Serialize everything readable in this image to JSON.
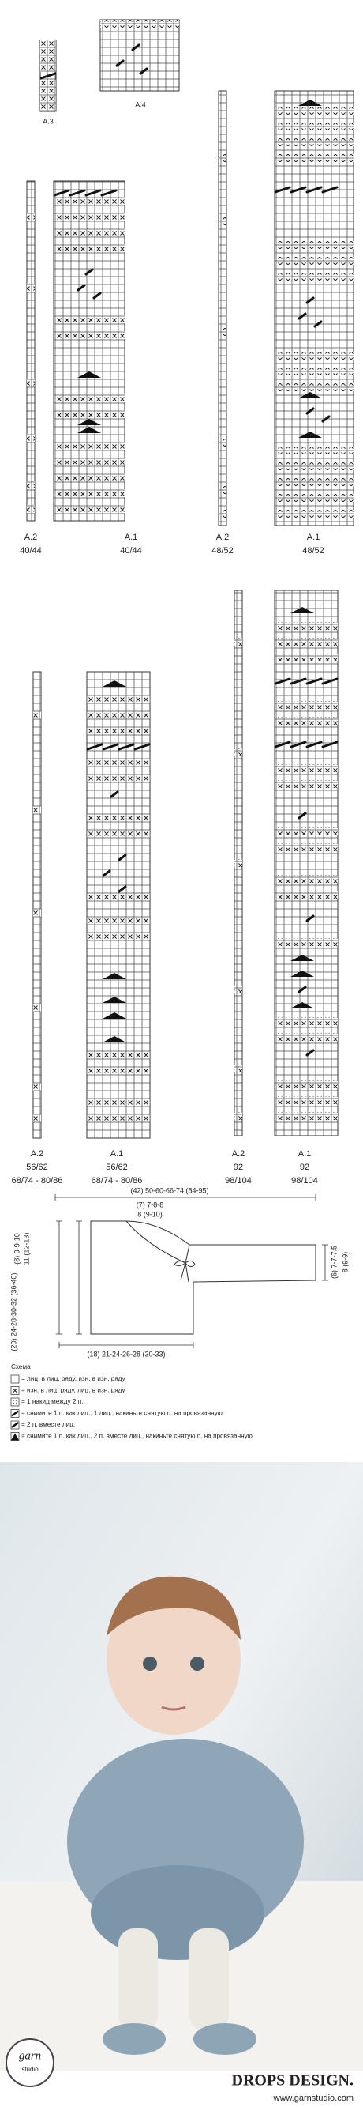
{
  "charts": [
    {
      "label": "A.3"
    },
    {
      "label": "A.4"
    }
  ],
  "size_groups": [
    {
      "a2": {
        "label": "A.2",
        "sizes": [
          "40/44"
        ]
      },
      "a1": {
        "label": "A.1",
        "sizes": [
          "40/44"
        ]
      }
    },
    {
      "a2": {
        "label": "A.2",
        "sizes": [
          "48/52"
        ]
      },
      "a1": {
        "label": "A.1",
        "sizes": [
          "48/52"
        ]
      }
    },
    {
      "a2": {
        "label": "A.2",
        "sizes": [
          "56/62",
          "68/74 - 80/86"
        ]
      },
      "a1": {
        "label": "A.1",
        "sizes": [
          "56/62",
          "68/74 - 80/86"
        ]
      }
    },
    {
      "a2": {
        "label": "A.2",
        "sizes": [
          "92",
          "98/104"
        ]
      },
      "a1": {
        "label": "A.1",
        "sizes": [
          "92",
          "98/104"
        ]
      }
    }
  ],
  "measurements": {
    "top": "(42) 50-60-66-74 (84-95)",
    "neck_1": "(7) 7-8-8",
    "neck_2": "8 (9-10)",
    "left_1": "(8) 9-9-10",
    "left_2": "11 (12-13)",
    "length": "(20) 24-28-30-32 (36-40)",
    "right_1": "(6) 7-7-7.5",
    "right_2": "8 (9-9)",
    "bottom": "(18) 21-24-26-28 (30-33)"
  },
  "legend": {
    "title": "Схема",
    "items": [
      "= лиц. в лиц. ряду, изн. в изн. ряду",
      "= изн. в лиц. ряду, лиц. в изн. ряду",
      "= 1 накид между 2 п.",
      "= снимите 1 п. как лиц., 1 лиц., накиньте снятую п. на провязанную",
      "= 2 п. вместе лиц.",
      "= снимите 1 п. как лиц., 2 п. вместе лиц., накиньте снятую п. на провязанную"
    ]
  },
  "footer": {
    "logo_1": "garn",
    "logo_2": "studio",
    "brand": "DROPS DESIGN.",
    "url": "www.garnstudio.com"
  }
}
